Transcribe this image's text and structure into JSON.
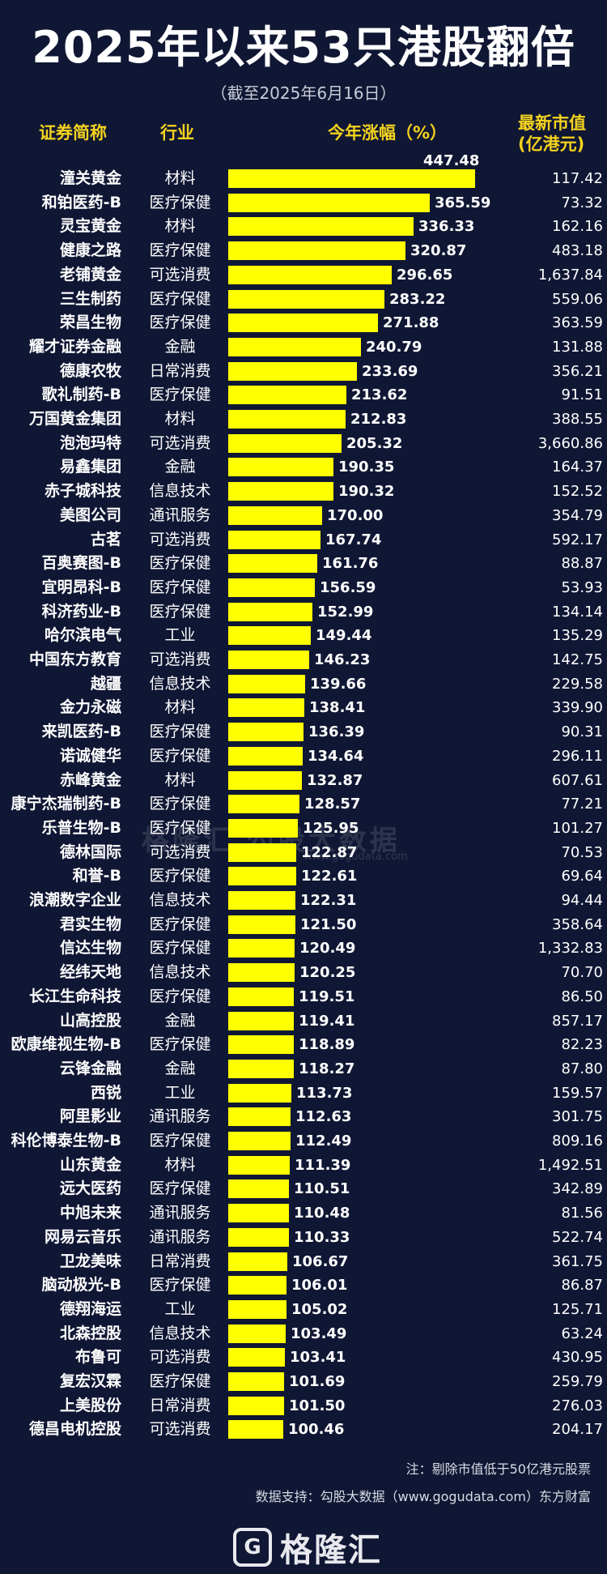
{
  "title": "2025年以来53只港股翻倍",
  "subtitle": "（截至2025年6月16日）",
  "headers": {
    "name": "证券简称",
    "industry": "行业",
    "gain": "今年涨幅（%）",
    "cap_line1": "最新市值",
    "cap_line2": "(亿港元)"
  },
  "colors": {
    "background": "#101734",
    "bar": "#ffff00",
    "header": "#f4d21e"
  },
  "chart_data": {
    "type": "bar",
    "orientation": "horizontal",
    "ylabel": "今年涨幅（%）",
    "xlim": [
      0,
      447.48
    ],
    "rows": [
      {
        "name": "潼关黄金",
        "industry": "材料",
        "gain": 447.48,
        "cap": "117.42"
      },
      {
        "name": "和铂医药-B",
        "industry": "医疗保健",
        "gain": 365.59,
        "cap": "73.32"
      },
      {
        "name": "灵宝黄金",
        "industry": "材料",
        "gain": 336.33,
        "cap": "162.16"
      },
      {
        "name": "健康之路",
        "industry": "医疗保健",
        "gain": 320.87,
        "cap": "483.18"
      },
      {
        "name": "老铺黄金",
        "industry": "可选消费",
        "gain": 296.65,
        "cap": "1,637.84"
      },
      {
        "name": "三生制药",
        "industry": "医疗保健",
        "gain": 283.22,
        "cap": "559.06"
      },
      {
        "name": "荣昌生物",
        "industry": "医疗保健",
        "gain": 271.88,
        "cap": "363.59"
      },
      {
        "name": "耀才证券金融",
        "industry": "金融",
        "gain": 240.79,
        "cap": "131.88"
      },
      {
        "name": "德康农牧",
        "industry": "日常消费",
        "gain": 233.69,
        "cap": "356.21"
      },
      {
        "name": "歌礼制药-B",
        "industry": "医疗保健",
        "gain": 213.62,
        "cap": "91.51"
      },
      {
        "name": "万国黄金集团",
        "industry": "材料",
        "gain": 212.83,
        "cap": "388.55"
      },
      {
        "name": "泡泡玛特",
        "industry": "可选消费",
        "gain": 205.32,
        "cap": "3,660.86"
      },
      {
        "name": "易鑫集团",
        "industry": "金融",
        "gain": 190.35,
        "cap": "164.37"
      },
      {
        "name": "赤子城科技",
        "industry": "信息技术",
        "gain": 190.32,
        "cap": "152.52"
      },
      {
        "name": "美图公司",
        "industry": "通讯服务",
        "gain": 170.0,
        "cap": "354.79"
      },
      {
        "name": "古茗",
        "industry": "可选消费",
        "gain": 167.74,
        "cap": "592.17"
      },
      {
        "name": "百奥赛图-B",
        "industry": "医疗保健",
        "gain": 161.76,
        "cap": "88.87"
      },
      {
        "name": "宜明昂科-B",
        "industry": "医疗保健",
        "gain": 156.59,
        "cap": "53.93"
      },
      {
        "name": "科济药业-B",
        "industry": "医疗保健",
        "gain": 152.99,
        "cap": "134.14"
      },
      {
        "name": "哈尔滨电气",
        "industry": "工业",
        "gain": 149.44,
        "cap": "135.29"
      },
      {
        "name": "中国东方教育",
        "industry": "可选消费",
        "gain": 146.23,
        "cap": "142.75"
      },
      {
        "name": "越疆",
        "industry": "信息技术",
        "gain": 139.66,
        "cap": "229.58"
      },
      {
        "name": "金力永磁",
        "industry": "材料",
        "gain": 138.41,
        "cap": "339.90"
      },
      {
        "name": "来凯医药-B",
        "industry": "医疗保健",
        "gain": 136.39,
        "cap": "90.31"
      },
      {
        "name": "诺诚健华",
        "industry": "医疗保健",
        "gain": 134.64,
        "cap": "296.11"
      },
      {
        "name": "赤峰黄金",
        "industry": "材料",
        "gain": 132.87,
        "cap": "607.61"
      },
      {
        "name": "康宁杰瑞制药-B",
        "industry": "医疗保健",
        "gain": 128.57,
        "cap": "77.21"
      },
      {
        "name": "乐普生物-B",
        "industry": "医疗保健",
        "gain": 125.95,
        "cap": "101.27"
      },
      {
        "name": "德林国际",
        "industry": "可选消费",
        "gain": 122.87,
        "cap": "70.53"
      },
      {
        "name": "和誉-B",
        "industry": "医疗保健",
        "gain": 122.61,
        "cap": "69.64"
      },
      {
        "name": "浪潮数字企业",
        "industry": "信息技术",
        "gain": 122.31,
        "cap": "94.44"
      },
      {
        "name": "君实生物",
        "industry": "医疗保健",
        "gain": 121.5,
        "cap": "358.64"
      },
      {
        "name": "信达生物",
        "industry": "医疗保健",
        "gain": 120.49,
        "cap": "1,332.83"
      },
      {
        "name": "经纬天地",
        "industry": "信息技术",
        "gain": 120.25,
        "cap": "70.70"
      },
      {
        "name": "长江生命科技",
        "industry": "医疗保健",
        "gain": 119.51,
        "cap": "86.50"
      },
      {
        "name": "山高控股",
        "industry": "金融",
        "gain": 119.41,
        "cap": "857.17"
      },
      {
        "name": "欧康维视生物-B",
        "industry": "医疗保健",
        "gain": 118.89,
        "cap": "82.23"
      },
      {
        "name": "云锋金融",
        "industry": "金融",
        "gain": 118.27,
        "cap": "87.80"
      },
      {
        "name": "西锐",
        "industry": "工业",
        "gain": 113.73,
        "cap": "159.57"
      },
      {
        "name": "阿里影业",
        "industry": "通讯服务",
        "gain": 112.63,
        "cap": "301.75"
      },
      {
        "name": "科伦博泰生物-B",
        "industry": "医疗保健",
        "gain": 112.49,
        "cap": "809.16"
      },
      {
        "name": "山东黄金",
        "industry": "材料",
        "gain": 111.39,
        "cap": "1,492.51"
      },
      {
        "name": "远大医药",
        "industry": "医疗保健",
        "gain": 110.51,
        "cap": "342.89"
      },
      {
        "name": "中旭未来",
        "industry": "通讯服务",
        "gain": 110.48,
        "cap": "81.56"
      },
      {
        "name": "网易云音乐",
        "industry": "通讯服务",
        "gain": 110.33,
        "cap": "522.74"
      },
      {
        "name": "卫龙美味",
        "industry": "日常消费",
        "gain": 106.67,
        "cap": "361.75"
      },
      {
        "name": "脑动极光-B",
        "industry": "医疗保健",
        "gain": 106.01,
        "cap": "86.87"
      },
      {
        "name": "德翔海运",
        "industry": "工业",
        "gain": 105.02,
        "cap": "125.71"
      },
      {
        "name": "北森控股",
        "industry": "信息技术",
        "gain": 103.49,
        "cap": "63.24"
      },
      {
        "name": "布鲁可",
        "industry": "可选消费",
        "gain": 103.41,
        "cap": "430.95"
      },
      {
        "name": "复宏汉霖",
        "industry": "医疗保健",
        "gain": 101.69,
        "cap": "259.79"
      },
      {
        "name": "上美股份",
        "industry": "日常消费",
        "gain": 101.5,
        "cap": "276.03"
      },
      {
        "name": "德昌电机控股",
        "industry": "可选消费",
        "gain": 100.46,
        "cap": "204.17"
      }
    ]
  },
  "note": "注：剔除市值低于50亿港元股票",
  "source": "数据支持：勾股大数据（www.gogudata.com）东方财富",
  "watermark": {
    "text": "格隆汇  勾股大数据",
    "sub": "www.gogudata.com"
  },
  "logo": {
    "mark": "G",
    "text": "格隆汇",
    "icon": "gelonghui-logo-icon"
  }
}
